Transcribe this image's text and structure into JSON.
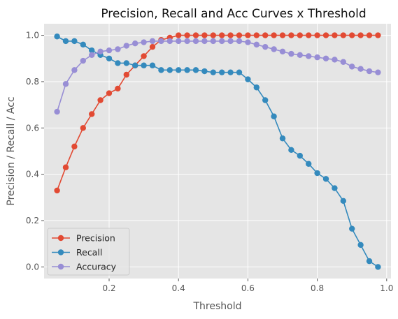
{
  "chart_data": {
    "type": "line",
    "title": "Precision, Recall and Acc Curves x Threshold",
    "xlabel": "Threshold",
    "ylabel": "Precision / Recall / Acc",
    "xlim": [
      0.0125,
      1.0125
    ],
    "ylim": [
      -0.05,
      1.05
    ],
    "xticks": [
      0.2,
      0.4,
      0.6,
      0.8,
      1.0
    ],
    "xtick_labels": [
      "0.2",
      "0.4",
      "0.6",
      "0.8",
      "1.0"
    ],
    "yticks": [
      0.0,
      0.2,
      0.4,
      0.6,
      0.8,
      1.0
    ],
    "ytick_labels": [
      "0.0",
      "0.2",
      "0.4",
      "0.6",
      "0.8",
      "1.0"
    ],
    "grid": true,
    "legend_position": "lower-left",
    "x": [
      0.05,
      0.075,
      0.1,
      0.125,
      0.15,
      0.175,
      0.2,
      0.225,
      0.25,
      0.275,
      0.3,
      0.325,
      0.35,
      0.375,
      0.4,
      0.425,
      0.45,
      0.475,
      0.5,
      0.525,
      0.55,
      0.575,
      0.6,
      0.625,
      0.65,
      0.675,
      0.7,
      0.725,
      0.75,
      0.775,
      0.8,
      0.825,
      0.85,
      0.875,
      0.9,
      0.925,
      0.95,
      0.975
    ],
    "series": [
      {
        "name": "Precision",
        "color": "#E24A33",
        "values": [
          0.33,
          0.43,
          0.52,
          0.6,
          0.66,
          0.72,
          0.75,
          0.77,
          0.83,
          0.87,
          0.91,
          0.95,
          0.98,
          0.99,
          1.0,
          1.0,
          1.0,
          1.0,
          1.0,
          1.0,
          1.0,
          1.0,
          1.0,
          1.0,
          1.0,
          1.0,
          1.0,
          1.0,
          1.0,
          1.0,
          1.0,
          1.0,
          1.0,
          1.0,
          1.0,
          1.0,
          1.0,
          1.0
        ]
      },
      {
        "name": "Recall",
        "color": "#348ABD",
        "values": [
          0.995,
          0.975,
          0.975,
          0.96,
          0.935,
          0.915,
          0.9,
          0.88,
          0.88,
          0.87,
          0.87,
          0.87,
          0.85,
          0.85,
          0.85,
          0.85,
          0.85,
          0.845,
          0.84,
          0.84,
          0.84,
          0.84,
          0.81,
          0.775,
          0.72,
          0.65,
          0.555,
          0.505,
          0.48,
          0.445,
          0.405,
          0.38,
          0.34,
          0.285,
          0.165,
          0.095,
          0.025,
          0.0
        ]
      },
      {
        "name": "Accuracy",
        "color": "#988ED5",
        "values": [
          0.67,
          0.79,
          0.85,
          0.89,
          0.915,
          0.93,
          0.935,
          0.94,
          0.955,
          0.965,
          0.97,
          0.975,
          0.975,
          0.975,
          0.975,
          0.975,
          0.975,
          0.975,
          0.975,
          0.975,
          0.975,
          0.975,
          0.97,
          0.96,
          0.95,
          0.94,
          0.93,
          0.92,
          0.915,
          0.91,
          0.905,
          0.9,
          0.895,
          0.885,
          0.865,
          0.855,
          0.845,
          0.84
        ]
      }
    ]
  }
}
